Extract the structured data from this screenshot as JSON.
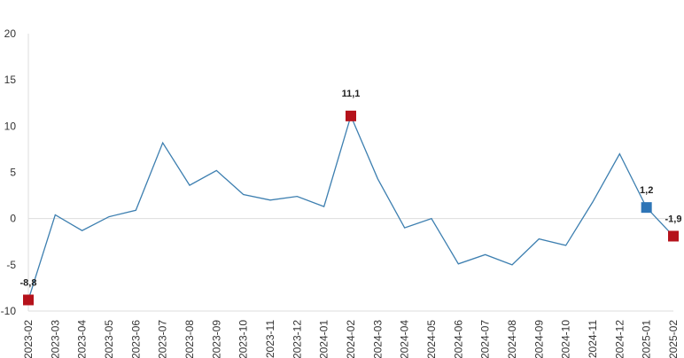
{
  "chart_data": {
    "type": "line",
    "categories": [
      "2023-02",
      "2023-03",
      "2023-04",
      "2023-05",
      "2023-06",
      "2023-07",
      "2023-08",
      "2023-09",
      "2023-10",
      "2023-11",
      "2023-12",
      "2024-01",
      "2024-02",
      "2024-03",
      "2024-04",
      "2024-05",
      "2024-06",
      "2024-07",
      "2024-08",
      "2024-09",
      "2024-10",
      "2024-11",
      "2024-12",
      "2025-01",
      "2025-02"
    ],
    "values": [
      -8.8,
      0.4,
      -1.3,
      0.2,
      0.9,
      8.2,
      3.6,
      5.2,
      2.6,
      2.0,
      2.4,
      1.3,
      11.1,
      4.3,
      -1.0,
      0.0,
      -4.9,
      -3.9,
      -5.0,
      -2.2,
      -2.9,
      1.8,
      7.0,
      1.2,
      -1.9
    ],
    "value_labels": [
      "-8,8",
      null,
      null,
      null,
      null,
      null,
      null,
      null,
      null,
      null,
      null,
      null,
      "11,1",
      null,
      null,
      null,
      null,
      null,
      null,
      null,
      null,
      null,
      null,
      "1,2",
      "-1,9"
    ],
    "marker_colors": [
      "#b5121b",
      null,
      null,
      null,
      null,
      null,
      null,
      null,
      null,
      null,
      null,
      null,
      "#b5121b",
      null,
      null,
      null,
      null,
      null,
      null,
      null,
      null,
      null,
      null,
      "#2e75b6",
      "#b5121b"
    ],
    "color": "#3d7fb0",
    "ylim": [
      -10,
      20
    ],
    "yticks": [
      -10,
      -5,
      0,
      5,
      10,
      15,
      20
    ],
    "grid": false
  }
}
